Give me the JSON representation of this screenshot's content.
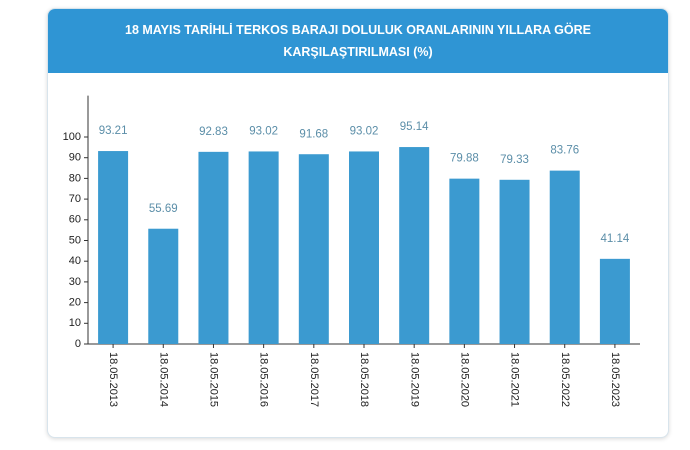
{
  "chart_data": {
    "type": "bar",
    "title": "18 MAYIS TARİHLİ TERKOS BARAJI DOLULUK ORANLARININ YILLARA GÖRE KARŞILAŞTIRILMASI (%)",
    "categories": [
      "18.05.2013",
      "18.05.2014",
      "18.05.2015",
      "18.05.2016",
      "18.05.2017",
      "18.05.2018",
      "18.05.2019",
      "18.05.2020",
      "18.05.2021",
      "18.05.2022",
      "18.05.2023"
    ],
    "values": [
      93.21,
      55.69,
      92.83,
      93.02,
      91.68,
      93.02,
      95.14,
      79.88,
      79.33,
      83.76,
      41.14
    ],
    "color": "#3b9ad0",
    "ylim": [
      0,
      120
    ],
    "yticks": [
      0,
      10,
      20,
      30,
      40,
      50,
      60,
      70,
      80,
      90,
      100
    ]
  }
}
